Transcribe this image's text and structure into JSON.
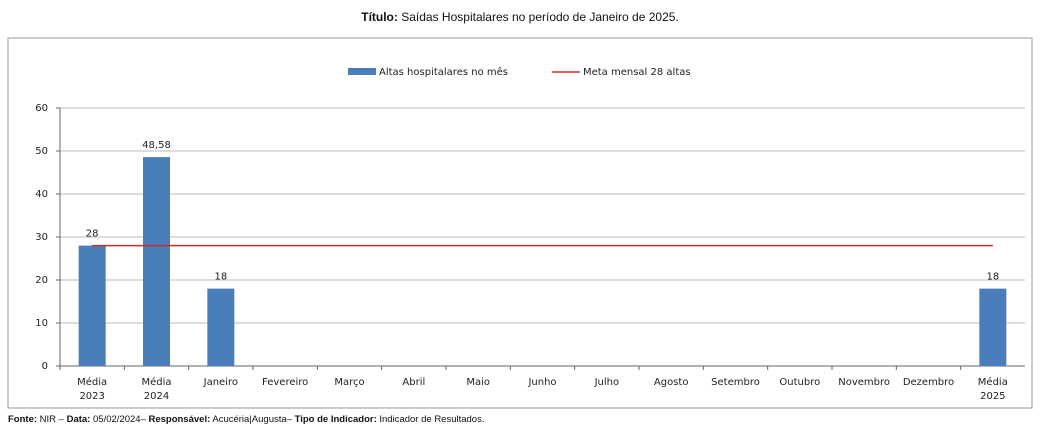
{
  "chart_data": {
    "type": "bar",
    "title_label": "Título:",
    "title": "Saídas Hospitalares no período de Janeiro de 2025.",
    "categories": [
      "Média 2023",
      "Média 2024",
      "Janeiro",
      "Fevereiro",
      "Março",
      "Abril",
      "Maio",
      "Junho",
      "Julho",
      "Agosto",
      "Setembro",
      "Outubro",
      "Novembro",
      "Dezembro",
      "Média 2025"
    ],
    "series": [
      {
        "name": "Altas hospitalares no mês",
        "color": "#4a7ebb",
        "type": "bar",
        "values": [
          28,
          48.58,
          18,
          null,
          null,
          null,
          null,
          null,
          null,
          null,
          null,
          null,
          null,
          null,
          18
        ],
        "value_labels": [
          "28",
          "48,58",
          "18",
          null,
          null,
          null,
          null,
          null,
          null,
          null,
          null,
          null,
          null,
          null,
          "18"
        ]
      },
      {
        "name": "Meta mensal 28 altas",
        "color": "#d02c2c",
        "type": "line",
        "values": [
          28,
          28,
          28,
          28,
          28,
          28,
          28,
          28,
          28,
          28,
          28,
          28,
          28,
          28,
          28
        ]
      }
    ],
    "ylim": [
      0,
      60
    ],
    "yticks": [
      0,
      10,
      20,
      30,
      40,
      50,
      60
    ],
    "grid": true,
    "legend": "top",
    "footer": [
      {
        "label": "Fonte:",
        "text": " NIR – "
      },
      {
        "label": "Data:",
        "text": " 05/02/2024– "
      },
      {
        "label": "Responsável:",
        "text": " Acucéria|Augusta– "
      },
      {
        "label": "Tipo de Indicador:",
        "text": " Indicador de Resultados."
      }
    ]
  }
}
